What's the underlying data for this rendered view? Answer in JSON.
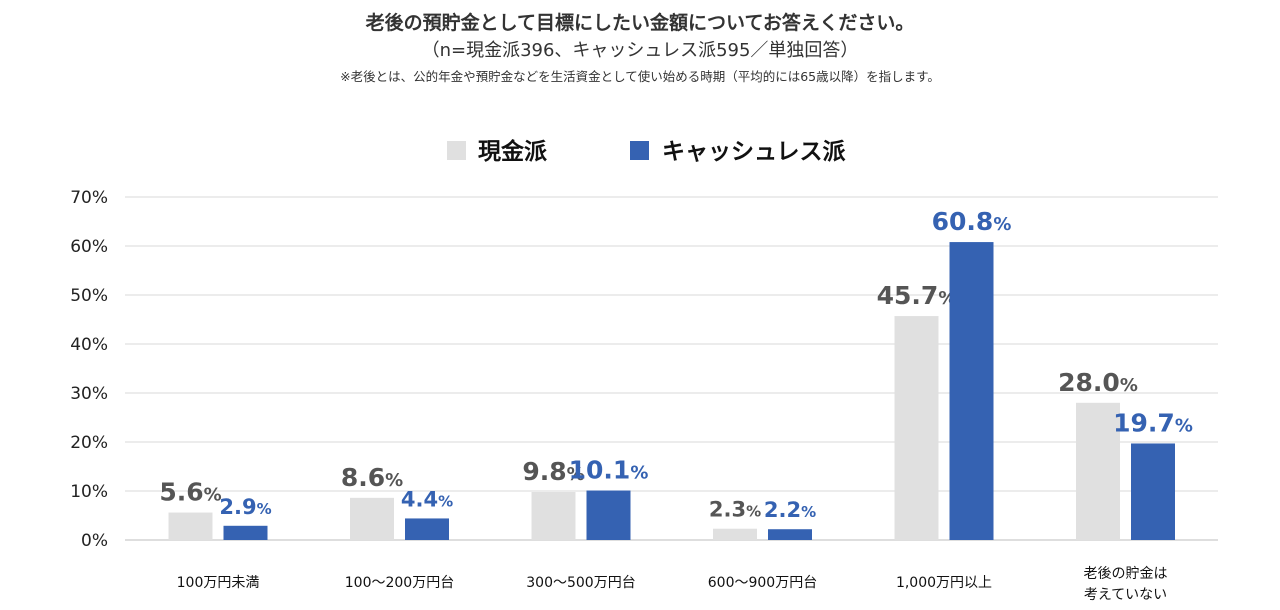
{
  "title": "老後の預貯金として目標にしたい金額についてお答えください。",
  "subtitle": "（n=現金派396、キャッシュレス派595／単独回答）",
  "note": "※老後とは、公的年金や預貯金などを生活資金として使い始める時期（平均的には65歳以降）を指します。",
  "chart_data": {
    "type": "bar",
    "categories": [
      "100万円未満",
      "100～200万円台",
      "300～500万円台",
      "600～900万円台",
      "1,000万円以上",
      "老後の貯金は\n考えていない"
    ],
    "series": [
      {
        "name": "現金派",
        "values": [
          5.6,
          8.6,
          9.8,
          2.3,
          45.7,
          28.0
        ],
        "labels": [
          "5.6",
          "8.6",
          "9.8",
          "2.3",
          "45.7",
          "28.0"
        ],
        "color": "#e0e0e0",
        "label_color": "#555555"
      },
      {
        "name": "キャッシュレス派",
        "values": [
          2.9,
          4.4,
          10.1,
          2.2,
          60.8,
          19.7
        ],
        "labels": [
          "2.9",
          "4.4",
          "10.1",
          "2.2",
          "60.8",
          "19.7"
        ],
        "color": "#3562b2",
        "label_color": "#3562b2"
      }
    ],
    "yticks": [
      "0%",
      "10%",
      "20%",
      "30%",
      "40%",
      "50%",
      "60%",
      "70%"
    ],
    "ylim": [
      0,
      70
    ],
    "unit": "%",
    "grid": true,
    "legend_position": "top-center"
  }
}
